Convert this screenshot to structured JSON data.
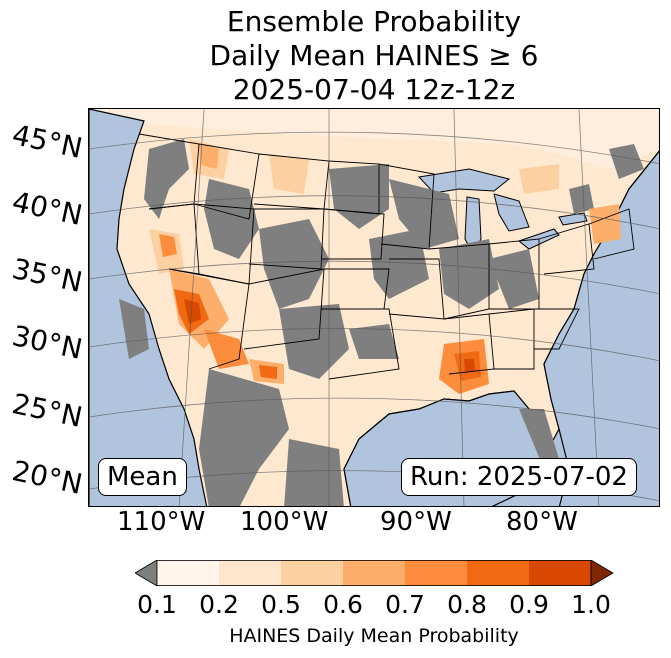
{
  "title": {
    "line1": "Ensemble Probability",
    "line2": "Daily Mean HAINES ≥ 6",
    "line3": "2025-07-04 12z-12z"
  },
  "map": {
    "lat_labels": [
      "45°N",
      "40°N",
      "35°N",
      "30°N",
      "25°N",
      "20°N"
    ],
    "lon_labels": [
      "110°W",
      "100°W",
      "90°W",
      "80°W"
    ],
    "stat_label": "Mean",
    "run_label": "Run: 2025-07-02",
    "ocean_color": "#b0c4de",
    "lake_color": "#b0c4de",
    "no_data_color": "#7f7f7f"
  },
  "colorbar": {
    "label": "HAINES Daily Mean Probability",
    "ticks": [
      "0.1",
      "0.2",
      "0.5",
      "0.6",
      "0.7",
      "0.8",
      "0.9",
      "1.0"
    ],
    "under_color": "#7f7f7f",
    "over_color": "#7f2704",
    "colors": [
      "#fff5eb",
      "#fee6ce",
      "#fdd0a2",
      "#fdae6b",
      "#fd8d3c",
      "#f16913",
      "#d94801"
    ]
  }
}
